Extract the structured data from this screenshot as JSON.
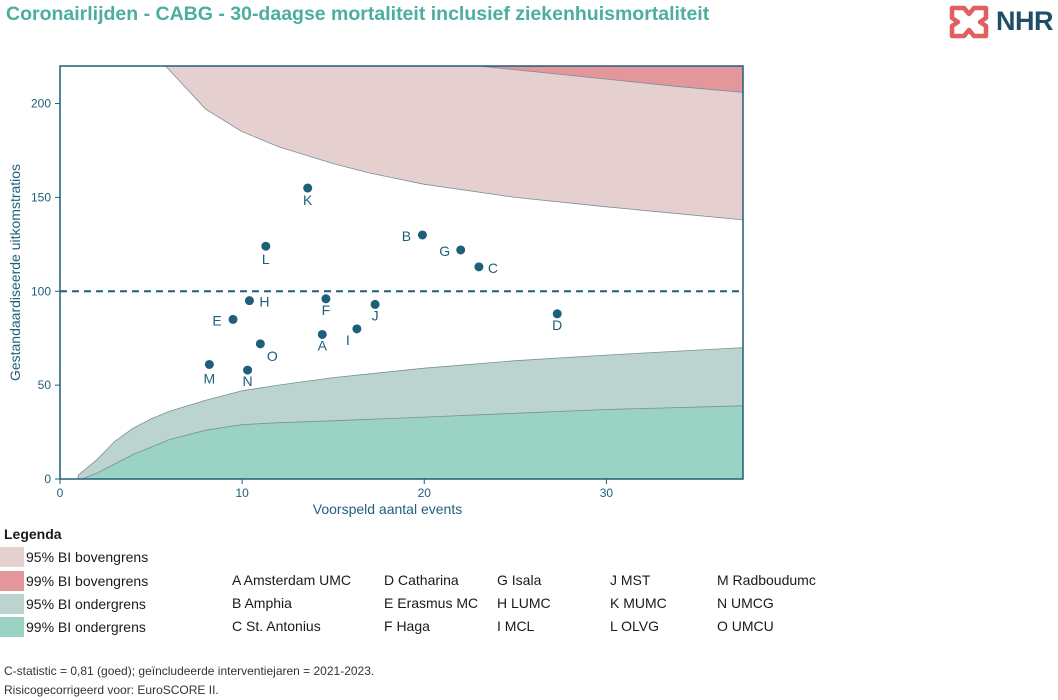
{
  "title": "Coronairlijden - CABG - 30-daagse mortaliteit inclusief ziekenhuismortaliteit",
  "logo": {
    "text": "NHR",
    "icon": "nhr-cross-logo-icon"
  },
  "colors": {
    "title": "#4cae9e",
    "upper95": "#e6cfcf",
    "upper99": "#e3979a",
    "lower95": "#bcd4cf",
    "lower99": "#9ad2c4",
    "points": "#1e5f7a",
    "axis": "#1e5f7a"
  },
  "chart_data": {
    "type": "scatter",
    "xlabel": "Voorspeld aantal events",
    "ylabel": "Gestandaardiseerde uitkomstratios",
    "xlim": [
      0,
      37.5
    ],
    "ylim": [
      0,
      220
    ],
    "xticks": [
      0,
      10,
      20,
      30
    ],
    "yticks": [
      0,
      50,
      100,
      150,
      200
    ],
    "reference_line": 100,
    "points": [
      {
        "label": "A",
        "x": 14.4,
        "y": 77
      },
      {
        "label": "B",
        "x": 19.9,
        "y": 130
      },
      {
        "label": "C",
        "x": 23.0,
        "y": 113
      },
      {
        "label": "D",
        "x": 27.3,
        "y": 88
      },
      {
        "label": "E",
        "x": 9.5,
        "y": 85
      },
      {
        "label": "F",
        "x": 14.6,
        "y": 96
      },
      {
        "label": "G",
        "x": 22.0,
        "y": 122
      },
      {
        "label": "H",
        "x": 10.4,
        "y": 95
      },
      {
        "label": "I",
        "x": 16.3,
        "y": 80
      },
      {
        "label": "J",
        "x": 17.3,
        "y": 93
      },
      {
        "label": "K",
        "x": 13.6,
        "y": 155
      },
      {
        "label": "L",
        "x": 11.3,
        "y": 124
      },
      {
        "label": "M",
        "x": 8.2,
        "y": 61
      },
      {
        "label": "N",
        "x": 10.3,
        "y": 58
      },
      {
        "label": "O",
        "x": 11.0,
        "y": 72
      }
    ],
    "bands": {
      "upper95": [
        [
          5.8,
          220
        ],
        [
          8,
          197
        ],
        [
          10,
          185
        ],
        [
          12,
          177
        ],
        [
          15,
          168
        ],
        [
          17,
          163
        ],
        [
          20,
          157
        ],
        [
          25,
          150
        ],
        [
          30,
          145
        ],
        [
          37.5,
          138
        ]
      ],
      "upper99": [
        [
          23,
          220
        ],
        [
          26,
          217
        ],
        [
          30,
          213
        ],
        [
          34,
          209
        ],
        [
          37.5,
          206
        ]
      ],
      "lower95": [
        [
          1,
          2
        ],
        [
          2,
          10
        ],
        [
          3,
          20
        ],
        [
          4,
          27
        ],
        [
          5,
          32
        ],
        [
          6,
          36
        ],
        [
          8,
          42
        ],
        [
          10,
          47
        ],
        [
          12,
          50
        ],
        [
          15,
          54
        ],
        [
          20,
          59
        ],
        [
          25,
          63
        ],
        [
          30,
          66
        ],
        [
          37.5,
          70
        ]
      ],
      "lower99": [
        [
          1.2,
          0
        ],
        [
          2,
          3
        ],
        [
          3,
          8
        ],
        [
          4,
          13
        ],
        [
          5,
          17
        ],
        [
          6,
          21
        ],
        [
          8,
          26
        ],
        [
          10,
          29
        ],
        [
          12,
          30
        ],
        [
          15,
          31
        ],
        [
          20,
          33
        ],
        [
          25,
          35
        ],
        [
          30,
          37
        ],
        [
          37.5,
          39
        ]
      ]
    }
  },
  "legend": {
    "title": "Legenda",
    "items": [
      {
        "label": "95% BI bovengrens",
        "color": "#e6cfcf"
      },
      {
        "label": "99% BI bovengrens",
        "color": "#e3979a"
      },
      {
        "label": "95% BI ondergrens",
        "color": "#bcd4cf"
      },
      {
        "label": "99% BI ondergrens",
        "color": "#9ad2c4"
      }
    ]
  },
  "hospitals": [
    "A Amsterdam UMC",
    "B Amphia",
    "C St. Antonius",
    "D Catharina",
    "E Erasmus MC",
    "F Haga",
    "G Isala",
    "H LUMC",
    "I MCL",
    "J MST",
    "K MUMC",
    "L OLVG",
    "M Radboudumc",
    "N UMCG",
    "O UMCU"
  ],
  "footnotes": [
    "C-statistic =  0,81 (goed); geïncludeerde interventiejaren = 2021-2023.",
    "Risicogecorrigeerd voor: EuroSCORE II."
  ]
}
